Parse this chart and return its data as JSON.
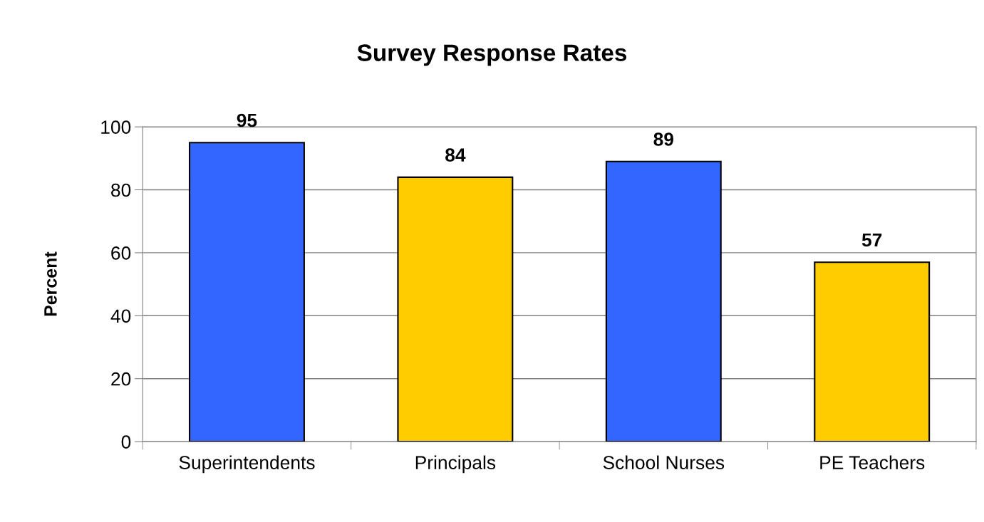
{
  "chart_data": {
    "type": "bar",
    "title": "Survey Response Rates",
    "ylabel": "Percent",
    "categories": [
      "Superintendents",
      "Principals",
      "School Nurses",
      "PE Teachers"
    ],
    "values": [
      95,
      84,
      89,
      57
    ],
    "colors": [
      "#3366ff",
      "#ffcc00",
      "#3366ff",
      "#ffcc00"
    ],
    "ylim": [
      0,
      100
    ],
    "yticks": [
      0,
      20,
      40,
      60,
      80,
      100
    ],
    "grid": "y",
    "data_labels": true
  }
}
